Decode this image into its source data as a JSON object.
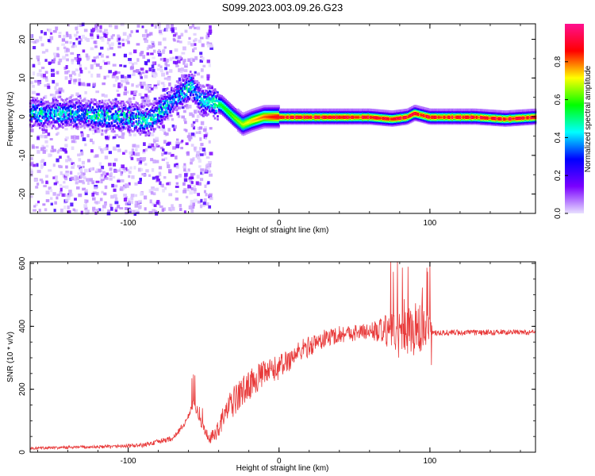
{
  "title": "S099.2023.003.09.26.G23",
  "chart_data": [
    {
      "type": "heatmap",
      "xlabel": "Height of straight line (km)",
      "ylabel": "Frequency (Hz)",
      "xlim": [
        -165,
        170
      ],
      "ylim": [
        -25,
        24
      ],
      "x_ticks": [
        -100,
        0,
        100
      ],
      "x_tick_labels": [
        "-100",
        "0",
        "100"
      ],
      "y_ticks": [
        -20,
        -10,
        0,
        10,
        20
      ],
      "y_tick_labels": [
        "-20",
        "-10",
        "0",
        "10",
        "20"
      ],
      "colorbar": {
        "label": "Normalized spectral amplitude",
        "range": [
          0,
          1
        ],
        "ticks": [
          0.0,
          0.2,
          0.4,
          0.6,
          0.8
        ],
        "tick_labels": [
          "0.0",
          "0.2",
          "0.4",
          "0.6",
          "0.8"
        ],
        "colors": [
          "#e8e0ff",
          "#7a00ff",
          "#0000ff",
          "#00ffff",
          "#00ff00",
          "#ffff00",
          "#ff0000",
          "#ff1090"
        ]
      },
      "ridge": {
        "x": [
          -145,
          -120,
          -100,
          -88,
          -80,
          -72,
          -65,
          -58,
          -52,
          -45,
          -38,
          -30,
          -24,
          -18,
          -10,
          0,
          20,
          40,
          60,
          75,
          85,
          90,
          100,
          130,
          150,
          170
        ],
        "y": [
          1,
          0.5,
          0,
          -1,
          1,
          4,
          6,
          8,
          4,
          4,
          3,
          0,
          -2,
          -1,
          0,
          0,
          0,
          0,
          0,
          -0.5,
          0,
          1,
          0,
          0,
          -0.5,
          0
        ]
      },
      "grid": false,
      "legend": "colorbar-right"
    },
    {
      "type": "line",
      "xlabel": "Height of straight line (km)",
      "ylabel": "SNR (10 * v/v)",
      "xlim": [
        -165,
        170
      ],
      "ylim": [
        0,
        605
      ],
      "x_ticks": [
        -100,
        0,
        100
      ],
      "x_tick_labels": [
        "-100",
        "0",
        "100"
      ],
      "y_ticks": [
        0,
        200,
        400,
        600
      ],
      "y_tick_labels": [
        "0",
        "200",
        "400",
        "600"
      ],
      "line_color": "#e83a3a",
      "envelope": {
        "x": [
          -165,
          -140,
          -110,
          -90,
          -70,
          -62,
          -57,
          -50,
          -46,
          -42,
          -35,
          -25,
          -15,
          0,
          15,
          30,
          40,
          50,
          60,
          70,
          80,
          90,
          100,
          105,
          130,
          150,
          170
        ],
        "y": [
          12,
          15,
          18,
          22,
          45,
          95,
          150,
          75,
          40,
          60,
          130,
          190,
          235,
          270,
          325,
          360,
          375,
          380,
          385,
          385,
          385,
          390,
          385,
          380,
          380,
          382,
          380
        ]
      },
      "noise": {
        "x": [
          -165,
          -100,
          -60,
          -45,
          -30,
          0,
          30,
          60,
          75,
          85,
          95,
          103,
          170
        ],
        "amplitude": [
          4,
          6,
          10,
          20,
          50,
          40,
          30,
          25,
          60,
          80,
          90,
          10,
          8
        ]
      },
      "grid": false,
      "legend": "none"
    }
  ]
}
